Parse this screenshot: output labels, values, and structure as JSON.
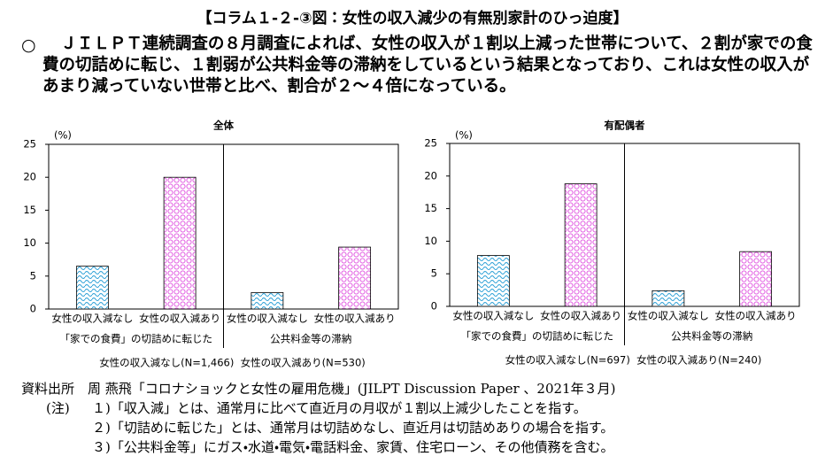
{
  "title": "【コラム１-２-③図：女性の収入減少の有無別家計のひっ迫度】",
  "bullet": "○",
  "paragraph": "ＪＩＬＰＴ連続調査の８月調査によれば、女性の収入が１割以上減った世帯について、２割が家での食費の切詰めに転じ、１割弱が公共料金等の滞納をしているという結果となっており、これは女性の収入があまり減っていない世帯と比べ、割合が２～４倍になっている。",
  "chart_data": [
    {
      "type": "bar",
      "title": "全体",
      "y_unit": "(%)",
      "categories": [
        "女性の収入減なし",
        "女性の収入減あり",
        "女性の収入減なし",
        "女性の収入減あり"
      ],
      "groups": [
        "「家での食費」の切詰めに転じた",
        "公共料金等の滞納"
      ],
      "values": [
        6.5,
        20.0,
        2.5,
        9.4
      ],
      "colors": [
        "#2a9fd6",
        "#e04fe0",
        "#2a9fd6",
        "#e04fe0"
      ],
      "patterns": [
        "wave",
        "circle",
        "wave",
        "circle"
      ],
      "ylim": [
        0,
        25
      ],
      "yticks": [
        0,
        5,
        10,
        15,
        20,
        25
      ],
      "note": "女性の収入減なし(N=1,466)  女性の収入減あり(N=530)"
    },
    {
      "type": "bar",
      "title": "有配偶者",
      "y_unit": "(%)",
      "categories": [
        "女性の収入減なし",
        "女性の収入減あり",
        "女性の収入減なし",
        "女性の収入減あり"
      ],
      "groups": [
        "「家での食費」の切詰めに転じた",
        "公共料金等の滞納"
      ],
      "values": [
        7.8,
        18.8,
        2.4,
        8.4
      ],
      "colors": [
        "#2a9fd6",
        "#e04fe0",
        "#2a9fd6",
        "#e04fe0"
      ],
      "patterns": [
        "wave",
        "circle",
        "wave",
        "circle"
      ],
      "ylim": [
        0,
        25
      ],
      "yticks": [
        0,
        5,
        10,
        15,
        20,
        25
      ],
      "note": "女性の収入減なし(N=697)  女性の収入減あり(N=240)"
    }
  ],
  "source": "資料出所　周 燕飛「コロナショックと女性の雇用危機」(JILPT Discussion Paper 、2021年３月)",
  "notes_label": "(注)",
  "notes": [
    "１)「収入減」とは、通常月に比べて直近月の月収が１割以上減少したことを指す。",
    "２)「切詰めに転じた」とは、通常月は切詰めなし、直近月は切詰めありの場合を指す。",
    "３)「公共料金等」にガス・水道・電気・電話料金、家賃、住宅ローン、その他債務を含む。"
  ]
}
